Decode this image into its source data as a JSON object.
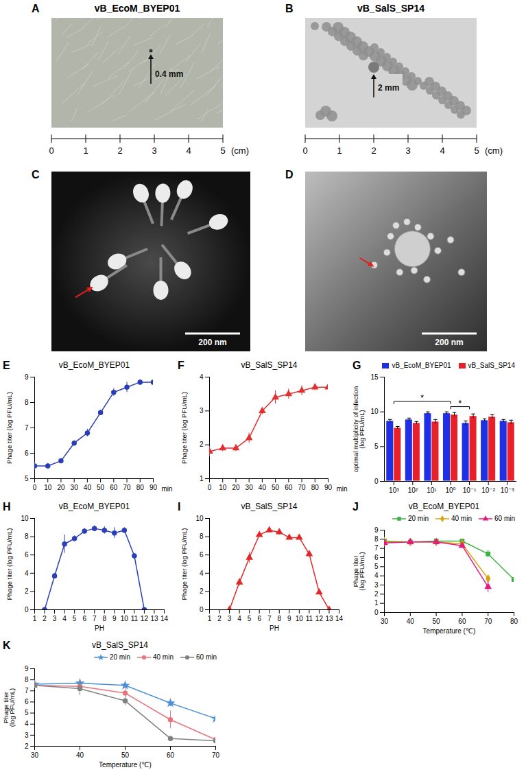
{
  "image_panels": [
    {
      "panel": "A",
      "title": "vB_EcoM_BYEP01",
      "annotation": "0.4 mm",
      "ruler": {
        "ticks": [
          0,
          1,
          2,
          3,
          4,
          5
        ],
        "unit": "(cm)"
      }
    },
    {
      "panel": "B",
      "title": "vB_SalS_SP14",
      "annotation": "2 mm",
      "ruler": {
        "ticks": [
          0,
          1,
          2,
          3,
          4,
          5
        ],
        "unit": "(cm)"
      }
    },
    {
      "panel": "C",
      "scale_bar": "200 nm"
    },
    {
      "panel": "D",
      "scale_bar": "200 nm"
    }
  ],
  "chart_data": [
    {
      "panel": "E",
      "type": "line",
      "title": "vB_EcoM_BYEP01",
      "x": [
        0,
        10,
        20,
        30,
        40,
        50,
        60,
        70,
        80,
        90
      ],
      "x_label": "min",
      "y_label": "Phage titer (log PFU/mL)",
      "values": [
        5.5,
        5.5,
        5.7,
        6.4,
        6.8,
        7.6,
        8.4,
        8.6,
        8.8,
        8.8
      ],
      "errors": [
        0.15,
        0.1,
        0.08,
        0.1,
        0.15,
        0.1,
        0.15,
        0.2,
        0.1,
        0.1
      ],
      "color": "#2b3db5",
      "marker": "circle",
      "xlim": [
        0,
        90
      ],
      "xticks": [
        0,
        10,
        20,
        30,
        40,
        50,
        60,
        70,
        80,
        90
      ],
      "ylim": [
        5,
        9
      ],
      "yticks": [
        5,
        6,
        7,
        8,
        9
      ]
    },
    {
      "panel": "F",
      "type": "line",
      "title": "vB_SalS_SP14",
      "x": [
        0,
        10,
        20,
        30,
        40,
        50,
        60,
        70,
        80,
        90
      ],
      "x_label": "min",
      "y_label": "Phage titer (log PFU/mL)",
      "values": [
        1.8,
        1.9,
        1.9,
        2.2,
        3.0,
        3.4,
        3.5,
        3.6,
        3.7,
        3.7
      ],
      "errors": [
        0.15,
        0.1,
        0.1,
        0.15,
        0.1,
        0.2,
        0.15,
        0.15,
        0.1,
        0.15
      ],
      "color": "#e03030",
      "marker": "triangle",
      "xlim": [
        0,
        90
      ],
      "xticks": [
        0,
        10,
        20,
        30,
        40,
        50,
        60,
        70,
        80,
        90
      ],
      "ylim": [
        1,
        4
      ],
      "yticks": [
        1,
        2,
        3,
        4
      ]
    },
    {
      "panel": "G",
      "type": "bar",
      "categories": [
        "10³",
        "10²",
        "10¹",
        "10⁰",
        "10⁻¹",
        "10⁻²",
        "10⁻³"
      ],
      "y_label": "optimal multiplicity of infection (log PFU/mL)",
      "series": [
        {
          "name": "vB_EcoM_BYEP01",
          "color": "#1f2fe6",
          "values": [
            8.7,
            8.9,
            9.8,
            9.8,
            8.4,
            8.8,
            8.7
          ],
          "errors": [
            0.2,
            0.2,
            0.2,
            0.2,
            0.3,
            0.2,
            0.2
          ]
        },
        {
          "name": "vB_SalS_SP14",
          "color": "#e8202a",
          "values": [
            7.7,
            8.4,
            8.6,
            9.6,
            9.4,
            9.3,
            8.5
          ],
          "errors": [
            0.2,
            0.2,
            0.3,
            0.3,
            0.3,
            0.3,
            0.3
          ]
        }
      ],
      "significance": [
        {
          "categories": [
            "10³",
            "10⁰"
          ],
          "label": "*"
        },
        {
          "categories": [
            "10⁰",
            "10⁻¹"
          ],
          "label": "*"
        }
      ],
      "ylim": [
        0,
        15
      ],
      "yticks": [
        0,
        5,
        10,
        15
      ],
      "legend": "top"
    },
    {
      "panel": "H",
      "type": "line",
      "title": "vB_EcoM_BYEP01",
      "x": [
        2,
        3,
        4,
        5,
        6,
        7,
        8,
        9,
        10,
        11,
        12
      ],
      "x_label": "PH",
      "y_label": "Phage titer (log PFU/mL)",
      "values": [
        0,
        3.7,
        7.2,
        7.8,
        8.6,
        8.9,
        8.7,
        8.4,
        8.7,
        5.9,
        0
      ],
      "errors": [
        0,
        0.3,
        1.0,
        0.3,
        0.3,
        0.3,
        0.4,
        0.6,
        0.3,
        0.1,
        0
      ],
      "color": "#2a3fb8",
      "marker": "circle",
      "xlim": [
        1,
        14
      ],
      "xticks": [
        1,
        2,
        3,
        4,
        5,
        6,
        7,
        8,
        9,
        10,
        11,
        12,
        13,
        14
      ],
      "ylim": [
        0,
        10
      ],
      "yticks": [
        0,
        2,
        4,
        6,
        8,
        10
      ]
    },
    {
      "panel": "I",
      "type": "line",
      "title": "vB_SalS_SP14",
      "x": [
        3,
        4,
        5,
        6,
        7,
        8,
        9,
        10,
        11,
        12,
        13
      ],
      "x_label": "PH",
      "y_label": "Phage titer (log PFU/mL)",
      "values": [
        0,
        3.0,
        5.7,
        8.2,
        8.7,
        8.5,
        7.9,
        7.9,
        6.1,
        1.9,
        0
      ],
      "errors": [
        0,
        0.4,
        0.6,
        0.2,
        0.2,
        0.3,
        0.2,
        0.2,
        0.3,
        0.1,
        0
      ],
      "color": "#e02828",
      "marker": "triangle",
      "xlim": [
        1,
        14
      ],
      "xticks": [
        1,
        2,
        3,
        4,
        5,
        6,
        7,
        8,
        9,
        10,
        11,
        12,
        13,
        14
      ],
      "ylim": [
        0,
        10
      ],
      "yticks": [
        0,
        2,
        4,
        6,
        8,
        10
      ]
    },
    {
      "panel": "J",
      "type": "line",
      "title": "vB_EcoM_BYEP01",
      "x": [
        30,
        40,
        50,
        60,
        70,
        80
      ],
      "x_label": "Temperature (℃)",
      "y_label": "Phage titer (log PFU/mL)",
      "series": [
        {
          "name": "20 min",
          "color": "#3cb043",
          "marker": "square",
          "values": [
            7.8,
            7.7,
            7.8,
            7.8,
            6.4,
            3.6
          ],
          "errors": [
            0.3,
            0.2,
            0.2,
            0.2,
            0.4,
            0.2
          ]
        },
        {
          "name": "40 min",
          "color": "#d4a50f",
          "marker": "diamond",
          "values": [
            7.7,
            7.7,
            7.7,
            7.5,
            3.7,
            null
          ],
          "errors": [
            0.5,
            0.3,
            0.4,
            0.5,
            0.3,
            null
          ]
        },
        {
          "name": "60 min",
          "color": "#e6197d",
          "marker": "triangle",
          "values": [
            7.6,
            7.7,
            7.7,
            7.3,
            2.8,
            null
          ],
          "errors": [
            0.4,
            0.3,
            0.3,
            0.3,
            0.6,
            null
          ]
        }
      ],
      "xlim": [
        30,
        80
      ],
      "xticks": [
        30,
        40,
        50,
        60,
        70,
        80
      ],
      "ylim": [
        0,
        9
      ],
      "yticks": [
        0,
        1,
        2,
        3,
        4,
        5,
        6,
        7,
        8,
        9
      ],
      "legend": "top"
    },
    {
      "panel": "K",
      "type": "line",
      "title": "vB_SalS_SP14",
      "x": [
        30,
        40,
        50,
        60,
        70
      ],
      "x_label": "Temperature (℃)",
      "y_label": "Phage titer (log PFU/mL)",
      "series": [
        {
          "name": "20 min",
          "color": "#4a90d9",
          "marker": "star",
          "values": [
            7.6,
            7.7,
            7.5,
            5.9,
            4.5
          ],
          "errors": [
            0.2,
            0.1,
            0.2,
            0.3,
            0.4
          ]
        },
        {
          "name": "40 min",
          "color": "#e8747c",
          "marker": "circle",
          "values": [
            7.5,
            7.4,
            6.8,
            4.4,
            2.6
          ],
          "errors": [
            0.3,
            0.5,
            0.5,
            0.8,
            0.2
          ]
        },
        {
          "name": "60 min",
          "color": "#808080",
          "marker": "circle",
          "values": [
            7.5,
            7.2,
            6.1,
            2.7,
            2.5
          ],
          "errors": [
            0.2,
            0.6,
            0.4,
            0.2,
            0.2
          ]
        }
      ],
      "xlim": [
        30,
        70
      ],
      "xticks": [
        30,
        40,
        50,
        60,
        70
      ],
      "ylim": [
        2,
        9
      ],
      "yticks": [
        2,
        3,
        4,
        5,
        6,
        7,
        8,
        9
      ],
      "legend": "top"
    }
  ]
}
